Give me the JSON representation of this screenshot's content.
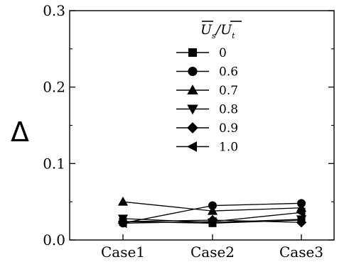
{
  "chart_data": {
    "type": "line",
    "title": "",
    "xlabel": "",
    "ylabel": "Δ",
    "categories": [
      "Case1",
      "Case2",
      "Case3"
    ],
    "ylim": [
      0,
      0.3
    ],
    "yticks": [
      "0.0",
      "0.1",
      "0.2",
      "0.3"
    ],
    "grid": false,
    "legend": {
      "placement": "top-center",
      "title_parts": [
        "U",
        "s",
        "/",
        "U",
        "t"
      ]
    },
    "series": [
      {
        "name": "0",
        "marker": "square",
        "values": [
          0.024,
          0.022,
          0.026
        ]
      },
      {
        "name": "0.6",
        "marker": "circle",
        "values": [
          0.022,
          0.045,
          0.048
        ]
      },
      {
        "name": "0.7",
        "marker": "triangle-up",
        "values": [
          0.05,
          0.038,
          0.042
        ]
      },
      {
        "name": "0.8",
        "marker": "triangle-down",
        "values": [
          0.028,
          0.023,
          0.027
        ]
      },
      {
        "name": "0.9",
        "marker": "diamond",
        "values": [
          0.024,
          0.026,
          0.023
        ]
      },
      {
        "name": "1.0",
        "marker": "triangle-left",
        "values": [
          0.022,
          0.024,
          0.036
        ]
      }
    ]
  }
}
